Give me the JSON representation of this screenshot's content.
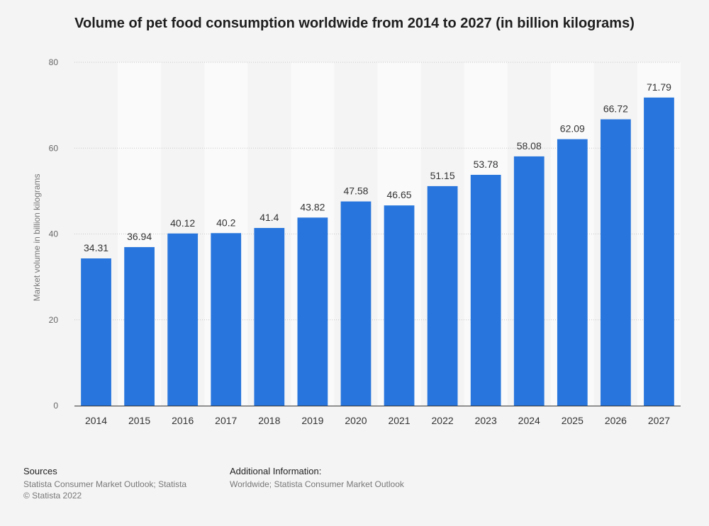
{
  "chart_data": {
    "type": "bar",
    "title": "Volume of pet food consumption worldwide from 2014 to 2027 (in billion kilograms)",
    "categories": [
      "2014",
      "2015",
      "2016",
      "2017",
      "2018",
      "2019",
      "2020",
      "2021",
      "2022",
      "2023",
      "2024",
      "2025",
      "2026",
      "2027"
    ],
    "values": [
      34.31,
      36.94,
      40.12,
      40.2,
      41.4,
      43.82,
      47.58,
      46.65,
      51.15,
      53.78,
      58.08,
      62.09,
      66.72,
      71.79
    ],
    "value_labels": [
      "34.31",
      "36.94",
      "40.12",
      "40.2",
      "41.4",
      "43.82",
      "47.58",
      "46.65",
      "51.15",
      "53.78",
      "58.08",
      "62.09",
      "66.72",
      "71.79"
    ],
    "xlabel": "",
    "ylabel": "Market volume in billion kilograms",
    "ylim": [
      0,
      80
    ],
    "yticks": [
      "0",
      "20",
      "40",
      "60",
      "80"
    ],
    "grid": true,
    "bar_color": "#2876dd",
    "band_color": "#fafafa"
  },
  "footer": {
    "sources_heading": "Sources",
    "sources_line1": "Statista Consumer Market Outlook; Statista",
    "sources_line2": "© Statista 2022",
    "additional_heading": "Additional Information:",
    "additional_line1": "Worldwide; Statista Consumer Market Outlook"
  }
}
